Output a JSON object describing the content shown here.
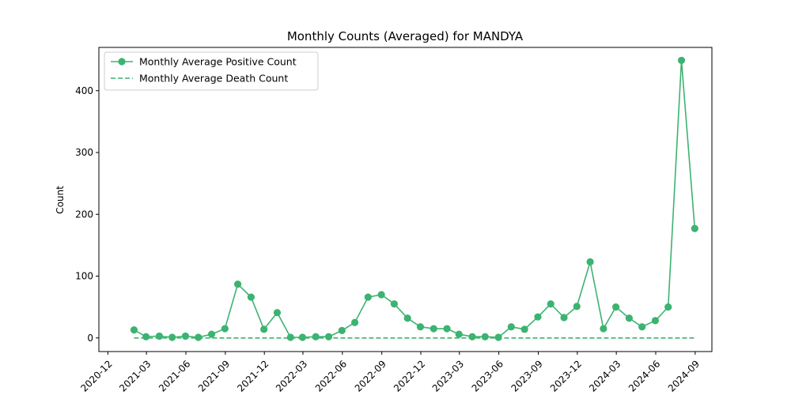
{
  "chart_data": {
    "type": "line",
    "title": "Monthly Counts (Averaged) for MANDYA",
    "xlabel": "",
    "ylabel": "Count",
    "ylim": [
      -22,
      470
    ],
    "yticks": [
      0,
      100,
      200,
      300,
      400
    ],
    "xlim": [
      "2020-11-10",
      "2024-10-10"
    ],
    "xticks": [
      "2020-12",
      "2021-03",
      "2021-06",
      "2021-09",
      "2021-12",
      "2022-03",
      "2022-06",
      "2022-09",
      "2022-12",
      "2023-03",
      "2023-06",
      "2023-09",
      "2023-12",
      "2024-03",
      "2024-06",
      "2024-09"
    ],
    "legend_position": "top-left",
    "grid": false,
    "x": [
      "2021-01-31",
      "2021-02-28",
      "2021-03-31",
      "2021-04-30",
      "2021-05-31",
      "2021-06-30",
      "2021-07-31",
      "2021-08-31",
      "2021-09-30",
      "2021-10-31",
      "2021-11-30",
      "2021-12-31",
      "2022-01-31",
      "2022-02-28",
      "2022-03-31",
      "2022-04-30",
      "2022-05-31",
      "2022-06-30",
      "2022-07-31",
      "2022-08-31",
      "2022-09-30",
      "2022-10-31",
      "2022-11-30",
      "2022-12-31",
      "2023-01-31",
      "2023-02-28",
      "2023-03-31",
      "2023-04-30",
      "2023-05-31",
      "2023-06-30",
      "2023-07-31",
      "2023-08-31",
      "2023-09-30",
      "2023-10-31",
      "2023-11-30",
      "2023-12-31",
      "2024-01-31",
      "2024-02-29",
      "2024-03-31",
      "2024-04-30",
      "2024-05-31",
      "2024-06-30",
      "2024-07-31",
      "2024-08-31"
    ],
    "series": [
      {
        "name": "Monthly Average Positive Count",
        "style": "solid-marker",
        "color": "#3cb371",
        "values": [
          13,
          2,
          3,
          1,
          3,
          1,
          6,
          15,
          87,
          66,
          14,
          41,
          1,
          1,
          2,
          2,
          12,
          25,
          66,
          70,
          55,
          32,
          18,
          15,
          15,
          6,
          2,
          2,
          1,
          18,
          14,
          34,
          55,
          33,
          51,
          123,
          15,
          50,
          32,
          18,
          28,
          50,
          449,
          177
        ]
      },
      {
        "name": "Monthly Average Death Count",
        "style": "dashed",
        "color": "#3cb371",
        "values": [
          0,
          0,
          0,
          0,
          0,
          0,
          0,
          0,
          0,
          0,
          0,
          0,
          0,
          0,
          0,
          0,
          0,
          0,
          0,
          0,
          0,
          0,
          0,
          0,
          0,
          0,
          0,
          0,
          0,
          0,
          0,
          0,
          0,
          0,
          0,
          0,
          0,
          0,
          0,
          0,
          0,
          0,
          0,
          0
        ]
      }
    ]
  }
}
